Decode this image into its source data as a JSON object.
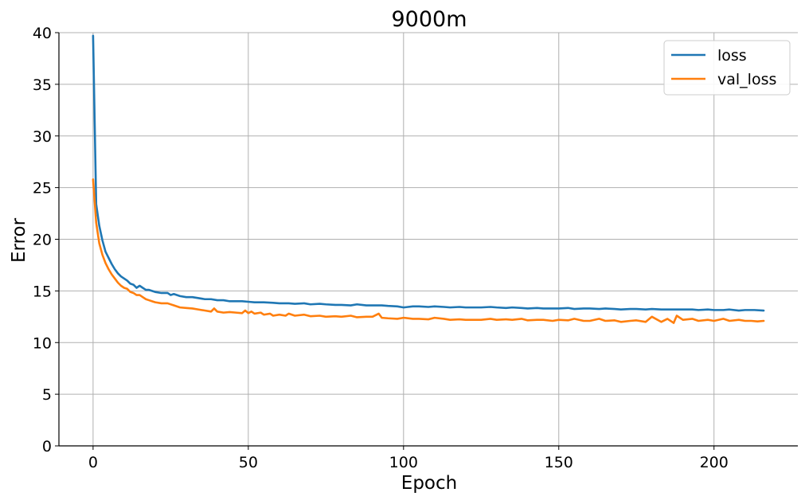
{
  "chart_data": {
    "type": "line",
    "title": "9000m",
    "xlabel": "Epoch",
    "ylabel": "Error",
    "xlim": [
      -11,
      227
    ],
    "ylim": [
      0,
      40
    ],
    "xticks": [
      0,
      50,
      100,
      150,
      200
    ],
    "yticks": [
      0,
      5,
      10,
      15,
      20,
      25,
      30,
      35,
      40
    ],
    "grid": true,
    "legend": "top-right",
    "series": [
      {
        "name": "loss",
        "color": "#1f77b4",
        "points": [
          [
            0,
            39.7
          ],
          [
            1,
            23.4
          ],
          [
            2,
            21.3
          ],
          [
            3,
            19.9
          ],
          [
            4,
            18.8
          ],
          [
            5,
            18.2
          ],
          [
            6,
            17.6
          ],
          [
            7,
            17.1
          ],
          [
            8,
            16.7
          ],
          [
            9,
            16.4
          ],
          [
            10,
            16.2
          ],
          [
            11,
            16.0
          ],
          [
            12,
            15.7
          ],
          [
            13,
            15.6
          ],
          [
            14,
            15.3
          ],
          [
            15,
            15.5
          ],
          [
            16,
            15.3
          ],
          [
            17,
            15.1
          ],
          [
            18,
            15.1
          ],
          [
            19,
            15.0
          ],
          [
            20,
            14.9
          ],
          [
            22,
            14.8
          ],
          [
            24,
            14.8
          ],
          [
            25,
            14.6
          ],
          [
            26,
            14.7
          ],
          [
            28,
            14.5
          ],
          [
            30,
            14.4
          ],
          [
            32,
            14.4
          ],
          [
            34,
            14.3
          ],
          [
            36,
            14.2
          ],
          [
            38,
            14.2
          ],
          [
            40,
            14.1
          ],
          [
            42,
            14.1
          ],
          [
            44,
            14.0
          ],
          [
            46,
            14.0
          ],
          [
            48,
            14.0
          ],
          [
            50,
            13.95
          ],
          [
            52,
            13.9
          ],
          [
            55,
            13.9
          ],
          [
            58,
            13.85
          ],
          [
            60,
            13.8
          ],
          [
            63,
            13.8
          ],
          [
            65,
            13.75
          ],
          [
            68,
            13.8
          ],
          [
            70,
            13.7
          ],
          [
            73,
            13.75
          ],
          [
            75,
            13.7
          ],
          [
            78,
            13.65
          ],
          [
            80,
            13.65
          ],
          [
            83,
            13.6
          ],
          [
            85,
            13.7
          ],
          [
            88,
            13.6
          ],
          [
            90,
            13.6
          ],
          [
            93,
            13.6
          ],
          [
            95,
            13.55
          ],
          [
            98,
            13.5
          ],
          [
            100,
            13.4
          ],
          [
            103,
            13.5
          ],
          [
            105,
            13.5
          ],
          [
            108,
            13.45
          ],
          [
            110,
            13.5
          ],
          [
            113,
            13.45
          ],
          [
            115,
            13.4
          ],
          [
            118,
            13.45
          ],
          [
            120,
            13.4
          ],
          [
            123,
            13.4
          ],
          [
            125,
            13.4
          ],
          [
            128,
            13.45
          ],
          [
            130,
            13.4
          ],
          [
            133,
            13.35
          ],
          [
            135,
            13.4
          ],
          [
            138,
            13.35
          ],
          [
            140,
            13.3
          ],
          [
            143,
            13.35
          ],
          [
            145,
            13.3
          ],
          [
            148,
            13.3
          ],
          [
            150,
            13.3
          ],
          [
            153,
            13.35
          ],
          [
            155,
            13.25
          ],
          [
            158,
            13.3
          ],
          [
            160,
            13.3
          ],
          [
            163,
            13.25
          ],
          [
            165,
            13.3
          ],
          [
            168,
            13.25
          ],
          [
            170,
            13.2
          ],
          [
            173,
            13.25
          ],
          [
            175,
            13.25
          ],
          [
            178,
            13.2
          ],
          [
            180,
            13.25
          ],
          [
            183,
            13.2
          ],
          [
            185,
            13.2
          ],
          [
            188,
            13.2
          ],
          [
            190,
            13.2
          ],
          [
            193,
            13.2
          ],
          [
            195,
            13.15
          ],
          [
            198,
            13.2
          ],
          [
            200,
            13.15
          ],
          [
            203,
            13.15
          ],
          [
            205,
            13.2
          ],
          [
            208,
            13.1
          ],
          [
            210,
            13.15
          ],
          [
            213,
            13.15
          ],
          [
            216,
            13.1
          ]
        ]
      },
      {
        "name": "val_loss",
        "color": "#ff7f0e",
        "points": [
          [
            0,
            25.8
          ],
          [
            1,
            21.6
          ],
          [
            2,
            19.6
          ],
          [
            3,
            18.5
          ],
          [
            4,
            17.7
          ],
          [
            5,
            17.1
          ],
          [
            6,
            16.6
          ],
          [
            7,
            16.2
          ],
          [
            8,
            15.8
          ],
          [
            9,
            15.5
          ],
          [
            10,
            15.3
          ],
          [
            11,
            15.2
          ],
          [
            12,
            14.9
          ],
          [
            13,
            14.8
          ],
          [
            14,
            14.6
          ],
          [
            15,
            14.6
          ],
          [
            16,
            14.4
          ],
          [
            17,
            14.2
          ],
          [
            18,
            14.1
          ],
          [
            19,
            14.0
          ],
          [
            20,
            13.9
          ],
          [
            22,
            13.8
          ],
          [
            24,
            13.8
          ],
          [
            26,
            13.6
          ],
          [
            28,
            13.4
          ],
          [
            30,
            13.35
          ],
          [
            32,
            13.3
          ],
          [
            34,
            13.2
          ],
          [
            36,
            13.1
          ],
          [
            38,
            13.0
          ],
          [
            39,
            13.3
          ],
          [
            40,
            13.0
          ],
          [
            42,
            12.9
          ],
          [
            44,
            12.95
          ],
          [
            46,
            12.9
          ],
          [
            48,
            12.85
          ],
          [
            49,
            13.1
          ],
          [
            50,
            12.85
          ],
          [
            51,
            13.0
          ],
          [
            52,
            12.8
          ],
          [
            54,
            12.9
          ],
          [
            55,
            12.7
          ],
          [
            57,
            12.8
          ],
          [
            58,
            12.6
          ],
          [
            60,
            12.7
          ],
          [
            62,
            12.6
          ],
          [
            63,
            12.8
          ],
          [
            65,
            12.6
          ],
          [
            68,
            12.7
          ],
          [
            70,
            12.55
          ],
          [
            73,
            12.6
          ],
          [
            75,
            12.5
          ],
          [
            78,
            12.55
          ],
          [
            80,
            12.5
          ],
          [
            83,
            12.6
          ],
          [
            85,
            12.45
          ],
          [
            88,
            12.5
          ],
          [
            90,
            12.5
          ],
          [
            92,
            12.8
          ],
          [
            93,
            12.4
          ],
          [
            95,
            12.35
          ],
          [
            98,
            12.3
          ],
          [
            100,
            12.4
          ],
          [
            103,
            12.3
          ],
          [
            105,
            12.3
          ],
          [
            108,
            12.25
          ],
          [
            110,
            12.4
          ],
          [
            113,
            12.3
          ],
          [
            115,
            12.2
          ],
          [
            118,
            12.25
          ],
          [
            120,
            12.2
          ],
          [
            123,
            12.2
          ],
          [
            125,
            12.2
          ],
          [
            128,
            12.3
          ],
          [
            130,
            12.2
          ],
          [
            133,
            12.25
          ],
          [
            135,
            12.2
          ],
          [
            138,
            12.3
          ],
          [
            140,
            12.15
          ],
          [
            143,
            12.2
          ],
          [
            145,
            12.2
          ],
          [
            148,
            12.1
          ],
          [
            150,
            12.2
          ],
          [
            153,
            12.15
          ],
          [
            155,
            12.3
          ],
          [
            158,
            12.1
          ],
          [
            160,
            12.1
          ],
          [
            163,
            12.3
          ],
          [
            165,
            12.1
          ],
          [
            168,
            12.15
          ],
          [
            170,
            12.0
          ],
          [
            173,
            12.1
          ],
          [
            175,
            12.15
          ],
          [
            178,
            12.0
          ],
          [
            180,
            12.5
          ],
          [
            183,
            12.0
          ],
          [
            185,
            12.3
          ],
          [
            187,
            11.9
          ],
          [
            188,
            12.6
          ],
          [
            190,
            12.2
          ],
          [
            193,
            12.3
          ],
          [
            195,
            12.1
          ],
          [
            198,
            12.2
          ],
          [
            200,
            12.1
          ],
          [
            203,
            12.3
          ],
          [
            205,
            12.1
          ],
          [
            208,
            12.2
          ],
          [
            210,
            12.1
          ],
          [
            212,
            12.1
          ],
          [
            214,
            12.05
          ],
          [
            216,
            12.1
          ]
        ]
      }
    ]
  }
}
